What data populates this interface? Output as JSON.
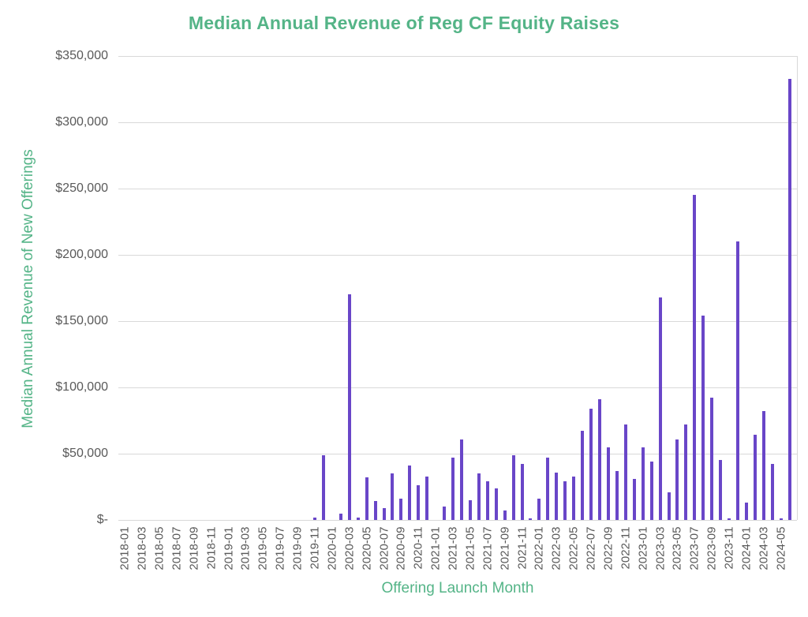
{
  "title": "Median Annual Revenue of Reg CF Equity Raises",
  "x_axis_title": "Offering Launch Month",
  "y_axis_title": "Median Annual Revenue of New Offerings",
  "colors": {
    "title_green": "#54B487",
    "bar_purple": "#6946C8",
    "tick_label_gray": "#595959",
    "gridline_gray": "#D9D9D9"
  },
  "chart_data": {
    "type": "bar",
    "title": "Median Annual Revenue of Reg CF Equity Raises",
    "xlabel": "Offering Launch Month",
    "ylabel": "Median Annual Revenue of New Offerings",
    "ylim": [
      0,
      350000
    ],
    "y_gridline_step": 50000,
    "grid": "horizontal",
    "legend": "none",
    "x": [
      "2018-01",
      "2018-02",
      "2018-03",
      "2018-04",
      "2018-05",
      "2018-06",
      "2018-07",
      "2018-08",
      "2018-09",
      "2018-10",
      "2018-11",
      "2018-12",
      "2019-01",
      "2019-02",
      "2019-03",
      "2019-04",
      "2019-05",
      "2019-06",
      "2019-07",
      "2019-08",
      "2019-09",
      "2019-10",
      "2019-11",
      "2019-12",
      "2020-01",
      "2020-02",
      "2020-03",
      "2020-04",
      "2020-05",
      "2020-06",
      "2020-07",
      "2020-08",
      "2020-09",
      "2020-10",
      "2020-11",
      "2020-12",
      "2021-01",
      "2021-02",
      "2021-03",
      "2021-04",
      "2021-05",
      "2021-06",
      "2021-07",
      "2021-08",
      "2021-09",
      "2021-10",
      "2021-11",
      "2021-12",
      "2022-01",
      "2022-02",
      "2022-03",
      "2022-04",
      "2022-05",
      "2022-06",
      "2022-07",
      "2022-08",
      "2022-09",
      "2022-10",
      "2022-11",
      "2022-12",
      "2023-01",
      "2023-02",
      "2023-03",
      "2023-04",
      "2023-05",
      "2023-06",
      "2023-07",
      "2023-08",
      "2023-09",
      "2023-10",
      "2023-11",
      "2023-12",
      "2024-01",
      "2024-02",
      "2024-03",
      "2024-04",
      "2024-05",
      "2024-06"
    ],
    "values": [
      0,
      0,
      0,
      0,
      0,
      0,
      0,
      0,
      0,
      0,
      0,
      0,
      0,
      0,
      0,
      0,
      0,
      0,
      0,
      0,
      0,
      0,
      2000,
      49000,
      0,
      5000,
      170000,
      2000,
      32000,
      14000,
      9000,
      35000,
      16000,
      41000,
      26000,
      33000,
      0,
      10000,
      47000,
      61000,
      15000,
      35000,
      29000,
      24000,
      7000,
      49000,
      42000,
      1000,
      16000,
      47000,
      36000,
      29000,
      33000,
      67000,
      84000,
      91000,
      55000,
      37000,
      72000,
      31000,
      55000,
      44000,
      168000,
      21000,
      61000,
      72000,
      245000,
      154000,
      92000,
      45000,
      1000,
      210000,
      13000,
      64000,
      82000,
      42000,
      1000,
      333000
    ],
    "x_tick_labels": [
      "2018-01",
      "2018-03",
      "2018-05",
      "2018-07",
      "2018-09",
      "2018-11",
      "2019-01",
      "2019-03",
      "2019-05",
      "2019-07",
      "2019-09",
      "2019-11",
      "2020-01",
      "2020-03",
      "2020-05",
      "2020-07",
      "2020-09",
      "2020-11",
      "2021-01",
      "2021-03",
      "2021-05",
      "2021-07",
      "2021-09",
      "2021-11",
      "2022-01",
      "2022-03",
      "2022-05",
      "2022-07",
      "2022-09",
      "2022-11",
      "2023-01",
      "2023-03",
      "2023-05",
      "2023-07",
      "2023-09",
      "2023-11",
      "2024-01",
      "2024-03",
      "2024-05"
    ],
    "y_tick_labels": [
      "$350,000",
      "$300,000",
      "$250,000",
      "$200,000",
      "$150,000",
      "$100,000",
      "$50,000",
      "$-"
    ]
  }
}
